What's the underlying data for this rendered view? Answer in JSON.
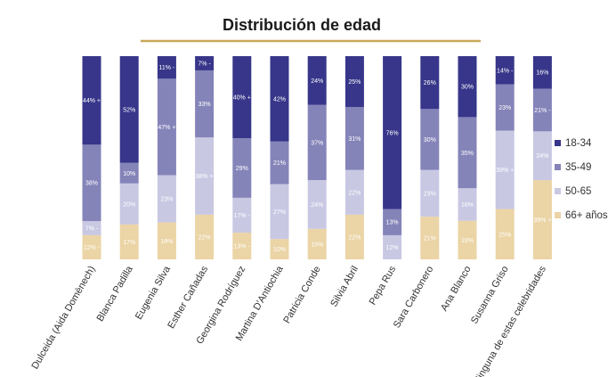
{
  "chart_data": {
    "type": "bar",
    "stacked": true,
    "orientation": "vertical",
    "title": "Distribución de edad",
    "xlabel": "",
    "ylabel": "",
    "ylim": [
      0,
      100
    ],
    "grid": false,
    "legend_position": "right",
    "categories": [
      "Dulceida (Aida Domènech)",
      "Blanca Padilla",
      "Eugenia Silva",
      "Esther Cañadas",
      "Georgina Rodríguez",
      "Martina D'Antiochia",
      "Patricia Conde",
      "Silvia Abril",
      "Pepa Rus",
      "Sara Carbonero",
      "Ana Blanco",
      "Susanna Griso",
      "Ninguna de estas celebridades"
    ],
    "series": [
      {
        "name": "18-34",
        "color": "#37368a",
        "values": [
          44,
          52,
          11,
          7,
          40,
          42,
          24,
          25,
          76,
          26,
          30,
          14,
          16
        ],
        "labels": [
          "44% +",
          "52%",
          "11% -",
          "7% -",
          "40% +",
          "42%",
          "24%",
          "25%",
          "76%",
          "26%",
          "30%",
          "14% -",
          "16%"
        ]
      },
      {
        "name": "35-49",
        "color": "#8584b9",
        "values": [
          38,
          10,
          47,
          33,
          29,
          21,
          37,
          31,
          13,
          30,
          35,
          23,
          21
        ],
        "labels": [
          "38%",
          "10%",
          "47% +",
          "33%",
          "29%",
          "21%",
          "37%",
          "31%",
          "13%",
          "30%",
          "35%",
          "23%",
          "21% -"
        ]
      },
      {
        "name": "50-65",
        "color": "#c9c8e3",
        "values": [
          7,
          20,
          23,
          38,
          17,
          27,
          24,
          22,
          12,
          23,
          16,
          39,
          24
        ],
        "labels": [
          "7% -",
          "20%",
          "23%",
          "38% +",
          "17% -",
          "27%",
          "24%",
          "22%",
          "12%",
          "23%",
          "16%",
          "39% +",
          "24%"
        ]
      },
      {
        "name": "66+ años",
        "color": "#ebd4a5",
        "values": [
          12,
          17,
          18,
          22,
          13,
          10,
          15,
          22,
          0,
          21,
          19,
          25,
          39
        ],
        "labels": [
          "12% -",
          "17%",
          "18%",
          "22%",
          "13% -",
          "10%",
          "15%",
          "22%",
          "",
          "21%",
          "19%",
          "25%",
          "39% +"
        ]
      }
    ]
  }
}
